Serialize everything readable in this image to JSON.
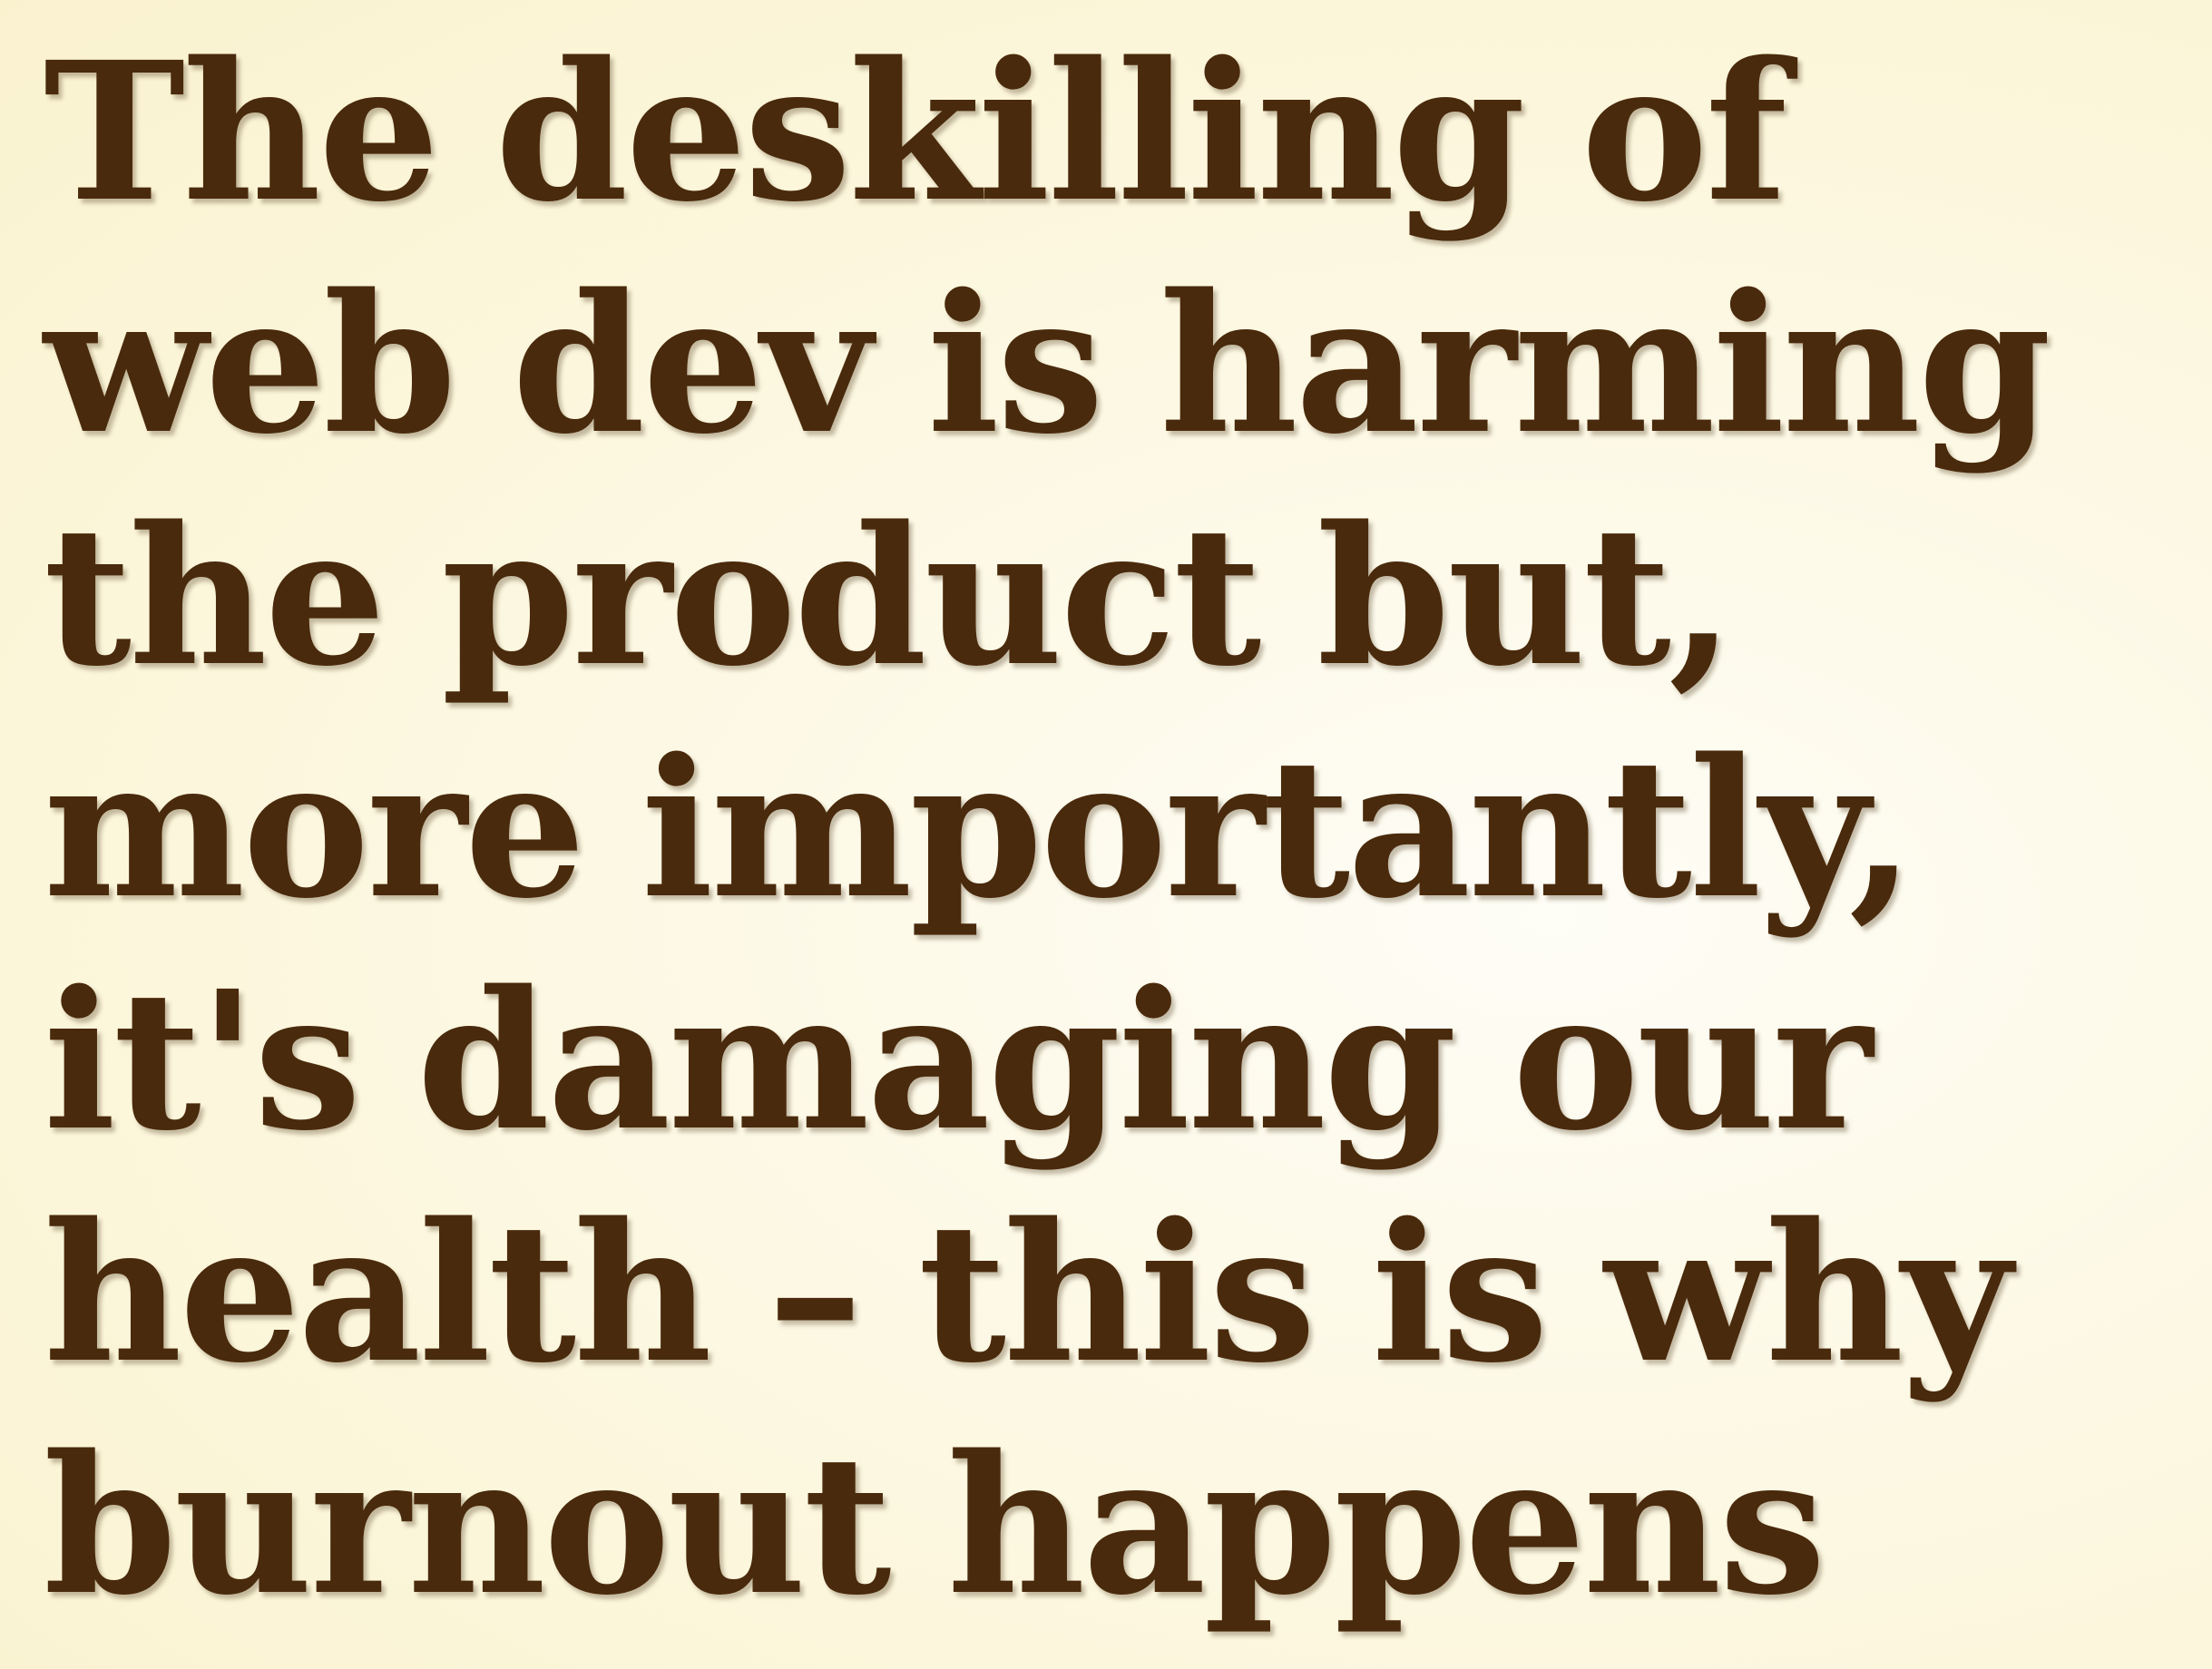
{
  "headline": {
    "lines": [
      "The deskilling of",
      "web dev is harming",
      "the product but,",
      "more importantly,",
      "it's damaging our",
      "health – this is why",
      "burnout happens"
    ]
  },
  "colors": {
    "text": "#4a2a0c",
    "background": "#fcf7df"
  }
}
